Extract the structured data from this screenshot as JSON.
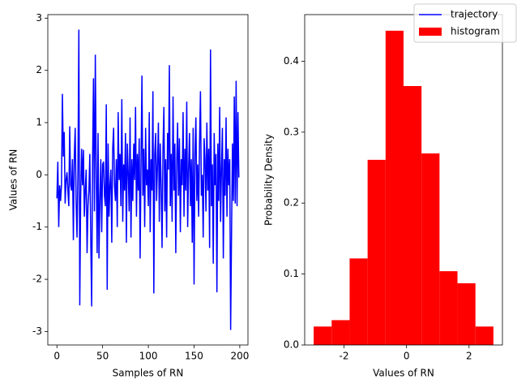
{
  "chart_data": [
    {
      "type": "line",
      "xlabel": "Samples of RN",
      "ylabel": "Values of RN",
      "x": [
        0,
        1,
        2,
        3,
        4,
        5,
        6,
        7,
        8,
        9,
        10,
        11,
        12,
        13,
        14,
        15,
        16,
        17,
        18,
        19,
        20,
        21,
        22,
        23,
        24,
        25,
        26,
        27,
        28,
        29,
        30,
        31,
        32,
        33,
        34,
        35,
        36,
        37,
        38,
        39,
        40,
        41,
        42,
        43,
        44,
        45,
        46,
        47,
        48,
        49,
        50,
        51,
        52,
        53,
        54,
        55,
        56,
        57,
        58,
        59,
        60,
        61,
        62,
        63,
        64,
        65,
        66,
        67,
        68,
        69,
        70,
        71,
        72,
        73,
        74,
        75,
        76,
        77,
        78,
        79,
        80,
        81,
        82,
        83,
        84,
        85,
        86,
        87,
        88,
        89,
        90,
        91,
        92,
        93,
        94,
        95,
        96,
        97,
        98,
        99,
        100,
        101,
        102,
        103,
        104,
        105,
        106,
        107,
        108,
        109,
        110,
        111,
        112,
        113,
        114,
        115,
        116,
        117,
        118,
        119,
        120,
        121,
        122,
        123,
        124,
        125,
        126,
        127,
        128,
        129,
        130,
        131,
        132,
        133,
        134,
        135,
        136,
        137,
        138,
        139,
        140,
        141,
        142,
        143,
        144,
        145,
        146,
        147,
        148,
        149,
        150,
        151,
        152,
        153,
        154,
        155,
        156,
        157,
        158,
        159,
        160,
        161,
        162,
        163,
        164,
        165,
        166,
        167,
        168,
        169,
        170,
        171,
        172,
        173,
        174,
        175,
        176,
        177,
        178,
        179,
        180,
        181,
        182,
        183,
        184,
        185,
        186,
        187,
        188,
        189,
        190,
        191,
        192,
        193,
        194,
        195,
        196,
        197,
        198,
        199
      ],
      "series": [
        {
          "name": "trajectory",
          "color": "#0000ff",
          "values": [
            -0.45,
            0.25,
            -1.0,
            -0.2,
            -0.5,
            -0.2,
            1.55,
            0.35,
            0.82,
            -0.55,
            -0.1,
            0.05,
            -0.3,
            -0.6,
            0.93,
            -0.2,
            -0.3,
            0.3,
            -1.25,
            0.35,
            0.9,
            -0.5,
            -1.2,
            0.1,
            2.78,
            -2.5,
            -0.4,
            0.5,
            -0.2,
            0.48,
            -0.8,
            -0.3,
            0.1,
            -1.5,
            -0.6,
            -0.3,
            0.4,
            -1.2,
            -2.52,
            0.2,
            1.85,
            -0.7,
            2.3,
            0.1,
            -1.5,
            0.8,
            -1.6,
            -0.5,
            0.3,
            -1.1,
            0.2,
            0.25,
            -0.4,
            -0.6,
            1.35,
            -2.2,
            0.6,
            -0.8,
            -0.2,
            0.1,
            -1.3,
            0.5,
            0.9,
            -0.2,
            -0.5,
            0.3,
            -1.0,
            1.2,
            -0.1,
            0.4,
            -0.6,
            1.45,
            -0.9,
            0.2,
            -0.3,
            0.8,
            -1.3,
            0.6,
            0.05,
            -0.7,
            1.1,
            -1.2,
            0.3,
            -0.5,
            0.6,
            -0.1,
            1.3,
            -0.8,
            0.4,
            -0.3,
            0.7,
            -1.6,
            0.2,
            1.9,
            -0.4,
            0.5,
            -1.0,
            0.9,
            -0.2,
            0.1,
            -0.6,
            1.2,
            -1.1,
            0.3,
            -0.3,
            1.6,
            -2.27,
            0.4,
            0.8,
            -0.5,
            0.2,
            1.0,
            -0.9,
            0.6,
            -0.2,
            -1.4,
            0.5,
            1.3,
            -0.7,
            0.3,
            -1.2,
            0.8,
            0.1,
            2.1,
            -0.6,
            0.4,
            -0.9,
            1.5,
            -0.3,
            0.6,
            -1.5,
            0.2,
            1.0,
            -0.4,
            0.7,
            -1.1,
            0.3,
            -0.2,
            1.2,
            -0.8,
            0.5,
            -0.3,
            1.4,
            -1.0,
            0.1,
            0.8,
            -0.6,
            0.3,
            -1.3,
            0.9,
            -2.1,
            0.4,
            1.1,
            -0.5,
            0.2,
            -0.8,
            0.6,
            1.6,
            -0.4,
            0.0,
            -1.2,
            0.7,
            0.3,
            -0.7,
            1.0,
            -0.3,
            0.5,
            -1.4,
            2.4,
            -0.6,
            0.2,
            -1.7,
            0.8,
            -0.2,
            0.4,
            -2.25,
            0.6,
            -0.5,
            1.3,
            -0.9,
            0.1,
            0.9,
            -1.6,
            0.3,
            -0.4,
            1.1,
            -0.8,
            0.5,
            -0.2,
            0.3,
            -2.97,
            -1.1,
            0.6,
            -0.5,
            1.5,
            -0.55,
            1.8,
            -0.6,
            1.2,
            -0.05
          ]
        }
      ],
      "xlim": [
        -9.95,
        208.95
      ],
      "xticks": [
        0,
        50,
        100,
        150,
        200
      ],
      "ylim": [
        -3.2575,
        3.0675
      ],
      "yticks": [
        -3,
        -2,
        -1,
        0,
        1,
        2,
        3
      ]
    },
    {
      "type": "histogram",
      "xlabel": "Values of RN",
      "ylabel": "Probability Density",
      "bins": [
        -2.97,
        -2.395,
        -1.82,
        -1.245,
        -0.67,
        -0.095,
        0.48,
        1.055,
        1.63,
        2.205,
        2.78
      ],
      "series": [
        {
          "name": "histogram",
          "color": "#ff0000",
          "values": [
            0.026,
            0.035,
            0.122,
            0.261,
            0.443,
            0.365,
            0.27,
            0.104,
            0.087,
            0.026
          ]
        }
      ],
      "xlim": [
        -3.2575,
        3.0675
      ],
      "xticks": [
        -2,
        0,
        2
      ],
      "ylim": [
        0,
        0.4657
      ],
      "yticks": [
        {
          "value": 0,
          "label": "0.0"
        },
        0.1,
        0.2,
        0.3,
        0.4
      ]
    }
  ],
  "legend": {
    "loc": "upper right"
  }
}
